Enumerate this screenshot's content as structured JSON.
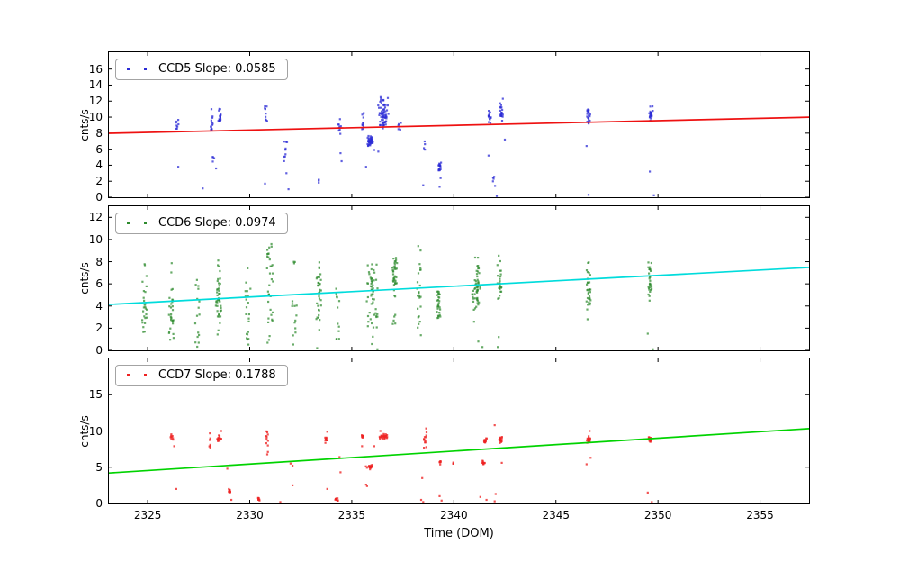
{
  "figure": {
    "xlabel": "Time (DOM)",
    "background": "#ffffff",
    "frame_color": "#000000",
    "xlim": [
      2323.1,
      2357.4
    ],
    "xticks": [
      2325,
      2330,
      2335,
      2340,
      2345,
      2350,
      2355
    ],
    "grid": false,
    "legend_position": "upper-left"
  },
  "chart_data": [
    {
      "type": "scatter",
      "name": "CCD5",
      "legend_label": "CCD5 Slope: 0.0585",
      "slope": 0.0585,
      "ylabel": "cnts/s",
      "ylim": [
        0,
        18.1
      ],
      "yticks": [
        0,
        2,
        4,
        6,
        8,
        10,
        12,
        14,
        16
      ],
      "marker_color": "#2b2bd6",
      "marker_opacity": 0.75,
      "trend_line": {
        "color": "#ee1111",
        "x": [
          2323.1,
          2357.4
        ],
        "y": [
          7.98,
          9.99
        ]
      },
      "clusters": [
        [
          2326.45,
          0.06,
          8.4,
          9.7,
          8,
          "u"
        ],
        [
          2328.15,
          0.07,
          8.3,
          11.2,
          12,
          "u"
        ],
        [
          2328.55,
          0.1,
          8.6,
          11.4,
          20,
          "g"
        ],
        [
          2328.2,
          0.08,
          4.4,
          5.4,
          4,
          "u"
        ],
        [
          2330.8,
          0.06,
          9.2,
          11.5,
          9,
          "u"
        ],
        [
          2331.75,
          0.08,
          4.3,
          7.2,
          9,
          "u"
        ],
        [
          2333.4,
          0.04,
          1.5,
          2.2,
          3,
          "u"
        ],
        [
          2334.4,
          0.07,
          7.7,
          9.8,
          9,
          "u"
        ],
        [
          2335.55,
          0.06,
          8.5,
          10.6,
          10,
          "u"
        ],
        [
          2335.9,
          0.2,
          6.3,
          7.7,
          40,
          "g"
        ],
        [
          2336.55,
          0.28,
          8.5,
          12.0,
          58,
          "g"
        ],
        [
          2336.6,
          0.22,
          11.6,
          12.7,
          7,
          "u"
        ],
        [
          2337.35,
          0.07,
          8.3,
          9.4,
          6,
          "u"
        ],
        [
          2338.55,
          0.06,
          5.9,
          7.3,
          4,
          "u"
        ],
        [
          2339.3,
          0.1,
          3.1,
          4.4,
          16,
          "g"
        ],
        [
          2341.75,
          0.09,
          9.0,
          11.2,
          14,
          "g"
        ],
        [
          2342.35,
          0.11,
          9.0,
          11.9,
          20,
          "g"
        ],
        [
          2342.0,
          0.12,
          1.3,
          2.6,
          5,
          "u"
        ],
        [
          2346.6,
          0.1,
          8.9,
          11.5,
          20,
          "g"
        ],
        [
          2349.65,
          0.11,
          9.0,
          11.7,
          20,
          "g"
        ]
      ],
      "points": [
        [
          2326.5,
          3.8
        ],
        [
          2328.35,
          3.6
        ],
        [
          2327.7,
          1.1
        ],
        [
          2330.75,
          1.7
        ],
        [
          2331.8,
          3.0
        ],
        [
          2331.9,
          1.0
        ],
        [
          2334.45,
          5.5
        ],
        [
          2334.5,
          4.5
        ],
        [
          2335.7,
          3.8
        ],
        [
          2336.1,
          5.9
        ],
        [
          2336.3,
          5.7
        ],
        [
          2338.5,
          1.5
        ],
        [
          2339.35,
          2.4
        ],
        [
          2339.3,
          1.3
        ],
        [
          2341.7,
          5.2
        ],
        [
          2342.5,
          7.2
        ],
        [
          2342.4,
          12.3
        ],
        [
          2342.1,
          0.15
        ],
        [
          2346.5,
          6.4
        ],
        [
          2346.6,
          0.3
        ],
        [
          2349.6,
          3.2
        ],
        [
          2349.8,
          0.25
        ]
      ]
    },
    {
      "type": "scatter",
      "name": "CCD6",
      "legend_label": "CCD6 Slope: 0.0974",
      "slope": 0.0974,
      "ylabel": "cnts/s",
      "ylim": [
        0,
        13
      ],
      "yticks": [
        0,
        2,
        4,
        6,
        8,
        10,
        12
      ],
      "marker_color": "#2e8b2e",
      "marker_opacity": 0.72,
      "trend_line": {
        "color": "#00dcdc",
        "x": [
          2323.1,
          2357.4
        ],
        "y": [
          4.14,
          7.48
        ]
      },
      "clusters": [
        [
          2324.85,
          0.12,
          1.6,
          8.0,
          26,
          "u"
        ],
        [
          2326.15,
          0.12,
          0.5,
          8.4,
          30,
          "u"
        ],
        [
          2327.45,
          0.12,
          0.3,
          6.6,
          16,
          "u"
        ],
        [
          2328.45,
          0.18,
          0.4,
          8.6,
          42,
          "g"
        ],
        [
          2329.9,
          0.14,
          0.0,
          6.2,
          20,
          "u"
        ],
        [
          2331.0,
          0.15,
          0.4,
          9.6,
          34,
          "u"
        ],
        [
          2332.2,
          0.12,
          0.4,
          4.6,
          12,
          "u"
        ],
        [
          2332.2,
          0.05,
          7.6,
          8.4,
          3,
          "u"
        ],
        [
          2333.4,
          0.14,
          1.2,
          8.9,
          34,
          "g"
        ],
        [
          2334.3,
          0.1,
          0.7,
          5.6,
          12,
          "u"
        ],
        [
          2336.0,
          0.28,
          4.0,
          8.2,
          38,
          "g"
        ],
        [
          2336.0,
          0.26,
          0.0,
          4.0,
          18,
          "u"
        ],
        [
          2337.1,
          0.14,
          4.4,
          8.9,
          36,
          "g"
        ],
        [
          2337.1,
          0.1,
          1.7,
          4.0,
          5,
          "u"
        ],
        [
          2338.3,
          0.1,
          0.9,
          9.6,
          24,
          "u"
        ],
        [
          2339.25,
          0.12,
          1.7,
          6.4,
          28,
          "g"
        ],
        [
          2341.1,
          0.24,
          2.2,
          9.2,
          55,
          "g"
        ],
        [
          2342.25,
          0.12,
          3.9,
          8.6,
          26,
          "g"
        ],
        [
          2346.6,
          0.12,
          3.1,
          8.3,
          32,
          "g"
        ],
        [
          2349.6,
          0.1,
          4.2,
          8.1,
          28,
          "g"
        ]
      ],
      "points": [
        [
          2329.9,
          7.4
        ],
        [
          2333.3,
          0.2
        ],
        [
          2341.2,
          0.8
        ],
        [
          2341.4,
          0.3
        ],
        [
          2342.2,
          1.2
        ],
        [
          2342.15,
          0.3
        ],
        [
          2346.55,
          2.8
        ],
        [
          2349.5,
          1.5
        ],
        [
          2349.75,
          0.1
        ]
      ]
    },
    {
      "type": "scatter",
      "name": "CCD7",
      "legend_label": "CCD7 Slope: 0.1788",
      "slope": 0.1788,
      "ylabel": "cnts/s",
      "ylim": [
        0,
        20
      ],
      "yticks": [
        0,
        5,
        10,
        15
      ],
      "marker_color": "#ee2222",
      "marker_opacity": 0.78,
      "trend_line": {
        "color": "#00d300",
        "x": [
          2323.1,
          2357.4
        ],
        "y": [
          4.2,
          10.33
        ]
      },
      "clusters": [
        [
          2326.2,
          0.1,
          8.6,
          9.6,
          9,
          "g"
        ],
        [
          2328.05,
          0.03,
          7.5,
          9.7,
          7,
          "u"
        ],
        [
          2328.5,
          0.11,
          8.4,
          9.6,
          14,
          "g"
        ],
        [
          2329.0,
          0.09,
          1.4,
          2.2,
          12,
          "g"
        ],
        [
          2330.45,
          0.07,
          0.3,
          0.9,
          8,
          "g"
        ],
        [
          2330.85,
          0.05,
          6.4,
          10.2,
          11,
          "u"
        ],
        [
          2333.75,
          0.09,
          8.1,
          9.3,
          11,
          "g"
        ],
        [
          2334.25,
          0.09,
          0.3,
          0.9,
          9,
          "g"
        ],
        [
          2335.5,
          0.07,
          8.8,
          9.5,
          9,
          "g"
        ],
        [
          2335.9,
          0.22,
          4.7,
          5.4,
          20,
          "g"
        ],
        [
          2336.55,
          0.26,
          8.8,
          9.7,
          26,
          "g"
        ],
        [
          2338.6,
          0.08,
          7.2,
          10.6,
          13,
          "u"
        ],
        [
          2339.35,
          0.07,
          5.3,
          6.0,
          7,
          "g"
        ],
        [
          2340.0,
          0.04,
          5.4,
          5.8,
          3,
          "u"
        ],
        [
          2341.55,
          0.09,
          8.1,
          9.1,
          12,
          "g"
        ],
        [
          2341.45,
          0.08,
          5.3,
          6.0,
          10,
          "g"
        ],
        [
          2342.3,
          0.09,
          8.2,
          9.5,
          16,
          "g"
        ],
        [
          2346.6,
          0.09,
          8.2,
          9.5,
          16,
          "g"
        ],
        [
          2349.6,
          0.09,
          8.4,
          9.3,
          16,
          "g"
        ]
      ],
      "points": [
        [
          2326.3,
          7.9
        ],
        [
          2326.4,
          2.0
        ],
        [
          2328.6,
          10.0
        ],
        [
          2329.1,
          0.5
        ],
        [
          2328.9,
          4.8
        ],
        [
          2332.0,
          5.5
        ],
        [
          2332.1,
          5.2
        ],
        [
          2332.1,
          2.5
        ],
        [
          2331.5,
          0.2
        ],
        [
          2333.8,
          9.9
        ],
        [
          2333.8,
          2.0
        ],
        [
          2334.4,
          6.4
        ],
        [
          2334.45,
          4.3
        ],
        [
          2335.5,
          7.9
        ],
        [
          2335.7,
          2.6
        ],
        [
          2335.75,
          2.4
        ],
        [
          2336.4,
          10.0
        ],
        [
          2336.1,
          7.9
        ],
        [
          2338.45,
          3.5
        ],
        [
          2338.4,
          0.5
        ],
        [
          2338.5,
          0.2
        ],
        [
          2339.3,
          1.0
        ],
        [
          2339.4,
          0.4
        ],
        [
          2341.3,
          0.9
        ],
        [
          2341.6,
          0.5
        ],
        [
          2342.0,
          10.8
        ],
        [
          2342.35,
          5.6
        ],
        [
          2342.05,
          1.3
        ],
        [
          2342.0,
          0.3
        ],
        [
          2346.65,
          10.0
        ],
        [
          2346.7,
          6.3
        ],
        [
          2346.5,
          5.4
        ],
        [
          2349.5,
          1.5
        ],
        [
          2349.7,
          0.2
        ]
      ]
    }
  ]
}
